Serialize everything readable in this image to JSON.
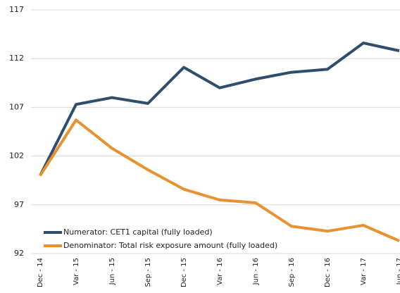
{
  "chart_data": {
    "type": "line",
    "categories": [
      "Dec - 14",
      "Var - 15",
      "Jun - 15",
      "Sep - 15",
      "Dec - 15",
      "Var - 16",
      "Jun - 16",
      "Sep - 16",
      "Dec - 16",
      "Var - 17",
      "Jun - 17"
    ],
    "series": [
      {
        "name": "Numerator: CET1 capital (fully loaded)",
        "color": "#2f4d6c",
        "values": [
          100,
          107.3,
          108.0,
          107.4,
          111.1,
          109.0,
          109.9,
          110.6,
          110.9,
          113.6,
          112.8
        ]
      },
      {
        "name": "Denominator: Total risk exposure amount (fully loaded)",
        "color": "#e8922f",
        "values": [
          100,
          105.7,
          102.8,
          100.6,
          98.6,
          97.5,
          97.2,
          94.8,
          94.3,
          94.9,
          93.3
        ]
      }
    ],
    "ylim": [
      92,
      117
    ],
    "yticks": [
      92,
      97,
      102,
      107,
      112,
      117
    ],
    "grid": true,
    "legend": "bottom-left"
  }
}
